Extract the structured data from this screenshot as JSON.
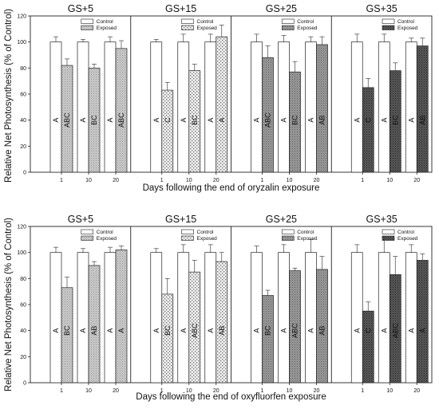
{
  "chart_data": [
    {
      "type": "bar",
      "title": "",
      "ylabel": "Relative Net Photosynthesis (% of Control)",
      "xlabel": "Days following the end of oryzalin exposure",
      "ylim": [
        0,
        120
      ],
      "yticks": [
        "0",
        "20",
        "40",
        "60",
        "80",
        "100",
        "120"
      ],
      "categories": [
        "1",
        "10",
        "20"
      ],
      "legend": {
        "position": "top-right",
        "entries": [
          "Control",
          "Exposed"
        ]
      },
      "panels": [
        {
          "title": "GS+5",
          "pattern": "light",
          "series": [
            {
              "name": "Control",
              "values": [
                100,
                100,
                100
              ],
              "errors": [
                4,
                2,
                4
              ],
              "letters": [
                "A",
                "A",
                "A"
              ]
            },
            {
              "name": "Exposed",
              "values": [
                82,
                80,
                95
              ],
              "errors": [
                5,
                3,
                6
              ],
              "letters": [
                "ABC",
                "BC",
                "ABC"
              ]
            }
          ]
        },
        {
          "title": "GS+15",
          "pattern": "dots",
          "series": [
            {
              "name": "Control",
              "values": [
                100,
                100,
                100
              ],
              "errors": [
                2,
                6,
                6
              ],
              "letters": [
                "A",
                "A",
                "A"
              ]
            },
            {
              "name": "Exposed",
              "values": [
                63,
                78,
                104
              ],
              "errors": [
                6,
                5,
                9
              ],
              "letters": [
                "C",
                "BC",
                "A"
              ]
            }
          ]
        },
        {
          "title": "GS+25",
          "pattern": "medium",
          "series": [
            {
              "name": "Control",
              "values": [
                100,
                100,
                100
              ],
              "errors": [
                6,
                5,
                4
              ],
              "letters": [
                "A",
                "A",
                "A"
              ]
            },
            {
              "name": "Exposed",
              "values": [
                88,
                77,
                98
              ],
              "errors": [
                9,
                8,
                6
              ],
              "letters": [
                "ABC",
                "BC",
                "AB"
              ]
            }
          ]
        },
        {
          "title": "GS+35",
          "pattern": "dark",
          "series": [
            {
              "name": "Control",
              "values": [
                100,
                100,
                100
              ],
              "errors": [
                6,
                6,
                3
              ],
              "letters": [
                "A",
                "A",
                "A"
              ]
            },
            {
              "name": "Exposed",
              "values": [
                65,
                78,
                97
              ],
              "errors": [
                7,
                6,
                6
              ],
              "letters": [
                "C",
                "BC",
                "AB"
              ]
            }
          ]
        }
      ]
    },
    {
      "type": "bar",
      "title": "",
      "ylabel": "Relative Net Photosynthesis (% of Control)",
      "xlabel": "Days following the end of oxyfluorfen exposure",
      "ylim": [
        0,
        120
      ],
      "yticks": [
        "0",
        "20",
        "40",
        "60",
        "80",
        "100",
        "120"
      ],
      "categories": [
        "1",
        "10",
        "20"
      ],
      "legend": {
        "position": "top-right",
        "entries": [
          "Control",
          "Exposed"
        ]
      },
      "panels": [
        {
          "title": "GS+5",
          "pattern": "light",
          "series": [
            {
              "name": "Control",
              "values": [
                100,
                100,
                100
              ],
              "errors": [
                4,
                3,
                4
              ],
              "letters": [
                "A",
                "A",
                "A"
              ]
            },
            {
              "name": "Exposed",
              "values": [
                73,
                90,
                102
              ],
              "errors": [
                8,
                3,
                3
              ],
              "letters": [
                "BC",
                "AB",
                "A"
              ]
            }
          ]
        },
        {
          "title": "GS+15",
          "pattern": "dots",
          "series": [
            {
              "name": "Control",
              "values": [
                100,
                100,
                100
              ],
              "errors": [
                3,
                6,
                6
              ],
              "letters": [
                "A",
                "A",
                "A"
              ]
            },
            {
              "name": "Exposed",
              "values": [
                68,
                85,
                93
              ],
              "errors": [
                12,
                9,
                7
              ],
              "letters": [
                "BC",
                "ABC",
                "AB"
              ]
            }
          ]
        },
        {
          "title": "GS+25",
          "pattern": "medium",
          "series": [
            {
              "name": "Control",
              "values": [
                100,
                100,
                100
              ],
              "errors": [
                5,
                6,
                10
              ],
              "letters": [
                "A",
                "A",
                "A"
              ]
            },
            {
              "name": "Exposed",
              "values": [
                67,
                86,
                87
              ],
              "errors": [
                4,
                2,
                10
              ],
              "letters": [
                "BC",
                "ABC",
                "AB"
              ]
            }
          ]
        },
        {
          "title": "GS+35",
          "pattern": "dark",
          "series": [
            {
              "name": "Control",
              "values": [
                100,
                100,
                100
              ],
              "errors": [
                6,
                12,
                6
              ],
              "letters": [
                "A",
                "A",
                "A"
              ]
            },
            {
              "name": "Exposed",
              "values": [
                55,
                83,
                94
              ],
              "errors": [
                7,
                14,
                5
              ],
              "letters": [
                "C",
                "ABC",
                "A"
              ]
            }
          ]
        }
      ]
    }
  ]
}
